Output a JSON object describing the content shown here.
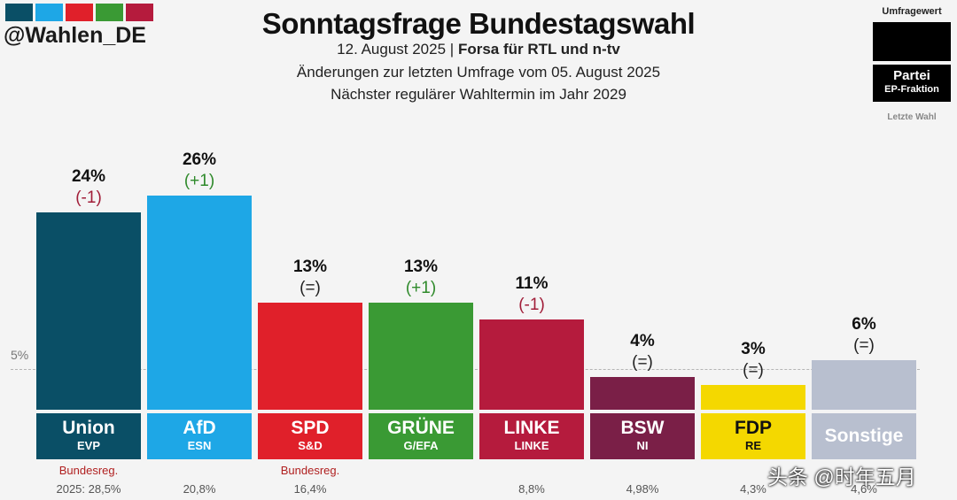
{
  "header": {
    "handle": "@Wahlen_DE",
    "swatch_colors": [
      "#0a4f66",
      "#1ea7e6",
      "#e0202a",
      "#3a9a34",
      "#b51b3d"
    ],
    "title": "Sonntagsfrage Bundestagswahl",
    "date": "12. August 2025",
    "separator": "|",
    "source": "Forsa für RTL und n-tv",
    "changes_note": "Änderungen zur letzten Umfrage vom 05. August 2025",
    "next_election": "Nächster regulärer Wahltermin im Jahr 2029"
  },
  "legend": {
    "value_label": "Umfragewert",
    "party_label": "Partei",
    "faction_label": "EP-Fraktion",
    "last_label": "Letzte Wahl"
  },
  "chart_data": {
    "type": "bar",
    "threshold_label": "5%",
    "threshold": 5,
    "ylim": [
      0,
      26
    ],
    "categories": [
      "Union",
      "AfD",
      "SPD",
      "GRÜNE",
      "LINKE",
      "BSW",
      "FDP",
      "Sonstige"
    ],
    "bars": [
      {
        "party": "Union",
        "faction": "EVP",
        "value": 24,
        "value_label": "24%",
        "change": "(-1)",
        "change_color": "#a11d38",
        "color": "#0a4f66",
        "plate_color": "#0a4f66",
        "text_color": "#ffffff",
        "note": "Bundesreg.",
        "last": "2025: 28,5%"
      },
      {
        "party": "AfD",
        "faction": "ESN",
        "value": 26,
        "value_label": "26%",
        "change": "(+1)",
        "change_color": "#2f8a2b",
        "color": "#1ea7e6",
        "plate_color": "#1ea7e6",
        "text_color": "#ffffff",
        "note": "",
        "last": "20,8%"
      },
      {
        "party": "SPD",
        "faction": "S&D",
        "value": 13,
        "value_label": "13%",
        "change": "(=)",
        "change_color": "#222222",
        "color": "#e0202a",
        "plate_color": "#e0202a",
        "text_color": "#ffffff",
        "note": "Bundesreg.",
        "last": "16,4%"
      },
      {
        "party": "GRÜNE",
        "faction": "G/EFA",
        "value": 13,
        "value_label": "13%",
        "change": "(+1)",
        "change_color": "#2f8a2b",
        "color": "#3a9a34",
        "plate_color": "#3a9a34",
        "text_color": "#ffffff",
        "note": "",
        "last": ""
      },
      {
        "party": "LINKE",
        "faction": "LINKE",
        "value": 11,
        "value_label": "11%",
        "change": "(-1)",
        "change_color": "#a11d38",
        "color": "#b51b3d",
        "plate_color": "#b51b3d",
        "text_color": "#ffffff",
        "note": "",
        "last": "8,8%"
      },
      {
        "party": "BSW",
        "faction": "NI",
        "value": 4,
        "value_label": "4%",
        "change": "(=)",
        "change_color": "#222222",
        "color": "#7a1f47",
        "plate_color": "#7a1f47",
        "text_color": "#ffffff",
        "note": "",
        "last": "4,98%"
      },
      {
        "party": "FDP",
        "faction": "RE",
        "value": 3,
        "value_label": "3%",
        "change": "(=)",
        "change_color": "#222222",
        "color": "#f4d800",
        "plate_color": "#f4d800",
        "text_color": "#111111",
        "note": "",
        "last": "4,3%"
      },
      {
        "party": "Sonstige",
        "faction": "",
        "value": 6,
        "value_label": "6%",
        "change": "(=)",
        "change_color": "#222222",
        "color": "#b8bfcf",
        "plate_color": "#b8bfcf",
        "text_color": "#ffffff",
        "note": "",
        "last": "4,6%"
      }
    ]
  },
  "watermark": "头条 @时年五月"
}
